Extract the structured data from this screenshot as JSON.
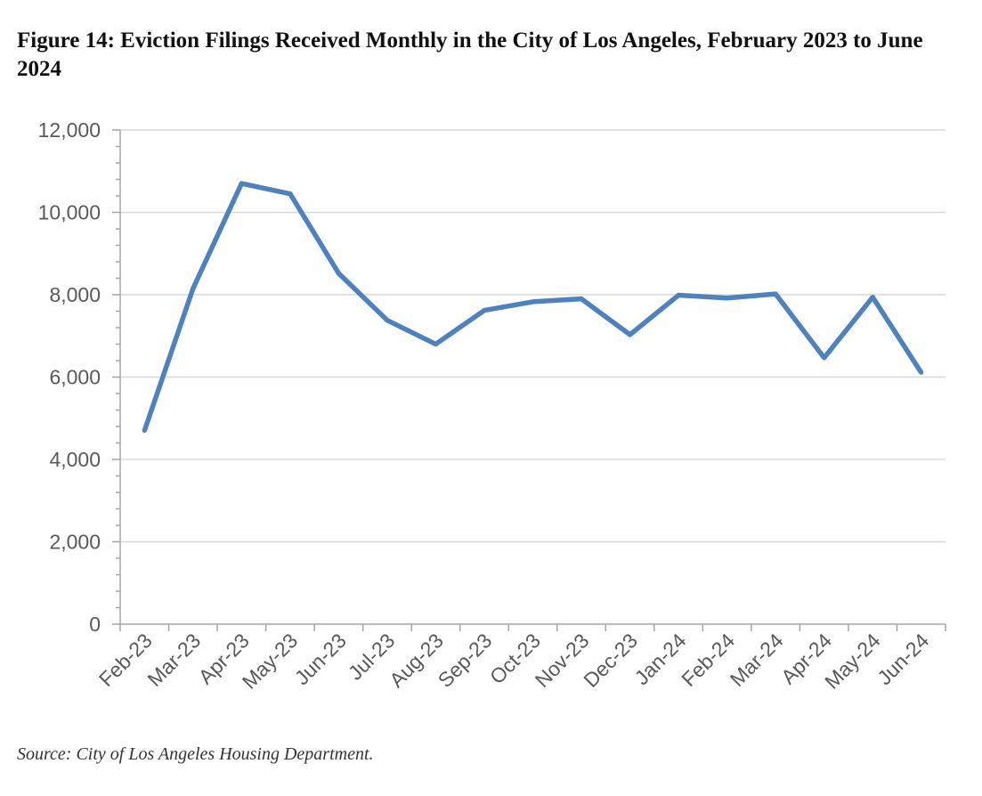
{
  "figure": {
    "title": "Figure 14: Eviction Filings Received Monthly in the City of Los Angeles, February 2023 to June 2024",
    "source": "Source: City of Los Angeles Housing Department."
  },
  "chart_data": {
    "type": "line",
    "title": "Figure 14: Eviction Filings Received Monthly in the City of Los Angeles, February 2023 to June 2024",
    "xlabel": "",
    "ylabel": "",
    "categories": [
      "Feb-23",
      "Mar-23",
      "Apr-23",
      "May-23",
      "Jun-23",
      "Jul-23",
      "Aug-23",
      "Sep-23",
      "Oct-23",
      "Nov-23",
      "Dec-23",
      "Jan-24",
      "Feb-24",
      "Mar-24",
      "Apr-24",
      "May-24",
      "Jun-24"
    ],
    "series": [
      {
        "values": [
          4700,
          8150,
          10700,
          10450,
          8520,
          7380,
          6800,
          7620,
          7830,
          7900,
          7030,
          7990,
          7920,
          8020,
          6470,
          7940,
          6110
        ],
        "color": "#4F81BD"
      }
    ],
    "ylim": [
      0,
      12000
    ],
    "yticks": [
      0,
      2000,
      4000,
      6000,
      8000,
      10000,
      12000
    ],
    "ytick_labels": [
      "0",
      "2,000",
      "4,000",
      "6,000",
      "8,000",
      "10,000",
      "12,000"
    ],
    "grid": true,
    "legend": "none"
  }
}
